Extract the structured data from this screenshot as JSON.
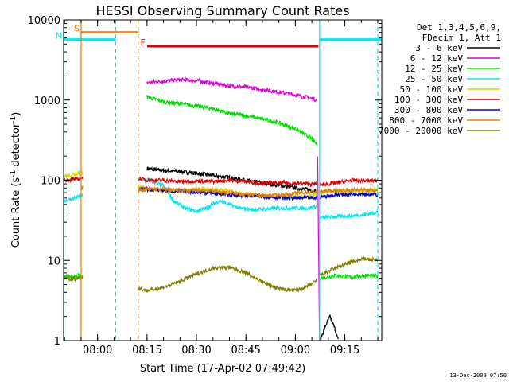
{
  "chart_data": {
    "type": "line",
    "title": "HESSI Observing Summary Count Rates",
    "xlabel": "Start Time (17-Apr-02 07:49:42)",
    "ylabel_main": "Count Rate (s",
    "ylabel_sup1": "-1",
    "ylabel_mid": " detector",
    "ylabel_sup2": "-1",
    "ylabel_end": ")",
    "yscale": "log",
    "ylim": [
      1,
      10000
    ],
    "xlim": [
      "07:49:42",
      "09:26:12"
    ],
    "yticks": [
      1,
      10,
      100,
      1000,
      10000
    ],
    "ytick_labels": [
      "1",
      "10",
      "100",
      "1000",
      "10000"
    ],
    "xticks": [
      "08:00",
      "08:15",
      "08:30",
      "08:45",
      "09:00",
      "09:15"
    ],
    "grid": false,
    "legend": {
      "placement": "right",
      "header1": "Det 1,3,4,5,6,9,",
      "header2": "FDecim 1, Att 1",
      "entries": [
        {
          "label": "3 - 6 keV",
          "color": "#000000"
        },
        {
          "label": "6 - 12 keV",
          "color": "#e000e0"
        },
        {
          "label": "12 - 25 keV",
          "color": "#00e000"
        },
        {
          "label": "25 - 50 keV",
          "color": "#00e8f0"
        },
        {
          "label": "50 - 100 keV",
          "color": "#d8d800"
        },
        {
          "label": "100 - 300 keV",
          "color": "#e00000"
        },
        {
          "label": "300 - 800 keV",
          "color": "#0000e0"
        },
        {
          "label": "800 - 7000 keV",
          "color": "#e08000"
        },
        {
          "label": "7000 - 20000 keV",
          "color": "#808000"
        }
      ]
    },
    "flags": [
      {
        "label": "S",
        "color": "#ff8000",
        "x_start": "07:55:00",
        "x_end": "08:12:30",
        "y": 7000
      },
      {
        "label": "N",
        "color": "#00e8f0",
        "x_start": "07:49:42",
        "x_end": "08:05:30",
        "y": 5700
      },
      {
        "label": "F",
        "color": "#e00000",
        "x_start": "08:15:00",
        "x_end": "09:07:00",
        "y": 4700
      },
      {
        "label": "",
        "color": "#00e8f0",
        "x_start": "09:07:30",
        "x_end": "09:26:12",
        "y": 5700
      }
    ],
    "vertical_lines": [
      {
        "x": "07:49:42",
        "color": "#00e8f0",
        "style": "solid"
      },
      {
        "x": "07:55:00",
        "color": "#e08000",
        "style": "solid"
      },
      {
        "x": "08:05:30",
        "color": "#00e8f0",
        "style": "dashed"
      },
      {
        "x": "08:12:20",
        "color": "#ff8000",
        "style": "dashed"
      },
      {
        "x": "09:07:20",
        "color": "#00e8f0",
        "style": "solid"
      },
      {
        "x": "09:25:00",
        "color": "#00e8f0",
        "style": "dashed"
      }
    ],
    "series": [
      {
        "name": "3 - 6 keV",
        "color": "#000000",
        "segments": [
          [
            [
              "08:15:00",
              140
            ],
            [
              "08:20:00",
              132
            ],
            [
              "08:25:00",
              128
            ],
            [
              "08:30:00",
              122
            ],
            [
              "08:35:00",
              114
            ],
            [
              "08:40:00",
              108
            ],
            [
              "08:45:00",
              100
            ],
            [
              "08:50:00",
              92
            ],
            [
              "08:55:00",
              86
            ],
            [
              "09:00:00",
              80
            ],
            [
              "09:05:00",
              75
            ],
            [
              "09:06:30",
              73
            ]
          ],
          [
            [
              "09:07:30",
              1
            ],
            [
              "09:09:00",
              1.5
            ],
            [
              "09:10:30",
              2
            ],
            [
              "09:12:00",
              1.4
            ],
            [
              "09:13:00",
              1
            ]
          ]
        ]
      },
      {
        "name": "6 - 12 keV",
        "color": "#e000e0",
        "segments": [
          [
            [
              "08:15:00",
              1650
            ],
            [
              "08:20:00",
              1720
            ],
            [
              "08:25:00",
              1800
            ],
            [
              "08:30:00",
              1750
            ],
            [
              "08:35:00",
              1620
            ],
            [
              "08:40:00",
              1500
            ],
            [
              "08:45:00",
              1450
            ],
            [
              "08:50:00",
              1360
            ],
            [
              "08:55:00",
              1260
            ],
            [
              "09:00:00",
              1160
            ],
            [
              "09:05:00",
              1050
            ],
            [
              "09:06:30",
              1000
            ]
          ],
          [
            [
              "09:06:45",
              200
            ],
            [
              "09:07:00",
              20
            ],
            [
              "09:07:20",
              1
            ]
          ]
        ]
      },
      {
        "name": "12 - 25 keV",
        "color": "#00e000",
        "segments": [
          [
            [
              "07:49:42",
              6.5
            ],
            [
              "07:52:00",
              6.2
            ],
            [
              "07:54:00",
              6.5
            ],
            [
              "07:55:30",
              6.3
            ]
          ],
          [
            [
              "08:15:00",
              1100
            ],
            [
              "08:20:00",
              950
            ],
            [
              "08:25:00",
              900
            ],
            [
              "08:30:00",
              840
            ],
            [
              "08:35:00",
              780
            ],
            [
              "08:40:00",
              680
            ],
            [
              "08:45:00",
              640
            ],
            [
              "08:50:00",
              580
            ],
            [
              "08:55:00",
              520
            ],
            [
              "09:00:00",
              440
            ],
            [
              "09:05:00",
              330
            ],
            [
              "09:06:30",
              280
            ]
          ],
          [
            [
              "09:07:30",
              6
            ],
            [
              "09:12:00",
              6.5
            ],
            [
              "09:17:00",
              6.2
            ],
            [
              "09:22:00",
              6.5
            ],
            [
              "09:25:00",
              6.3
            ]
          ]
        ]
      },
      {
        "name": "25 - 50 keV",
        "color": "#00e8f0",
        "segments": [
          [
            [
              "07:49:42",
              56
            ],
            [
              "07:52:00",
              58
            ],
            [
              "07:54:00",
              62
            ],
            [
              "07:55:30",
              64
            ]
          ],
          [
            [
              "08:12:20",
              102
            ],
            [
              "08:16:00",
              100
            ],
            [
              "08:20:00",
              85
            ],
            [
              "08:23:00",
              55
            ],
            [
              "08:27:00",
              44
            ],
            [
              "08:30:00",
              41
            ],
            [
              "08:33:00",
              45
            ],
            [
              "08:37:00",
              56
            ],
            [
              "08:40:00",
              50
            ],
            [
              "08:43:00",
              45
            ],
            [
              "08:47:00",
              43
            ],
            [
              "08:52:00",
              44
            ],
            [
              "08:56:00",
              45
            ],
            [
              "09:00:00",
              45
            ],
            [
              "09:04:00",
              45
            ],
            [
              "09:06:30",
              47
            ]
          ],
          [
            [
              "09:07:30",
              34
            ],
            [
              "09:12:00",
              35
            ],
            [
              "09:17:00",
              36
            ],
            [
              "09:22:00",
              38
            ],
            [
              "09:25:00",
              40
            ]
          ]
        ]
      },
      {
        "name": "50 - 100 keV",
        "color": "#d8d800",
        "segments": [
          [
            [
              "07:49:42",
              110
            ],
            [
              "07:52:00",
              115
            ],
            [
              "07:54:00",
              122
            ],
            [
              "07:55:30",
              126
            ]
          ],
          [
            [
              "08:12:20",
              85
            ],
            [
              "08:17:00",
              74
            ],
            [
              "08:22:00",
              72
            ],
            [
              "08:27:00",
              74
            ],
            [
              "08:32:00",
              78
            ],
            [
              "08:38:00",
              76
            ],
            [
              "08:44:00",
              68
            ],
            [
              "08:50:00",
              64
            ],
            [
              "08:55:00",
              62
            ],
            [
              "09:00:00",
              62
            ],
            [
              "09:04:00",
              62
            ],
            [
              "09:06:30",
              66
            ]
          ],
          [
            [
              "09:07:30",
              70
            ],
            [
              "09:13:00",
              74
            ],
            [
              "09:19:00",
              74
            ],
            [
              "09:25:00",
              76
            ]
          ]
        ]
      },
      {
        "name": "100 - 300 keV",
        "color": "#e00000",
        "segments": [
          [
            [
              "07:49:42",
              100
            ],
            [
              "07:52:00",
              102
            ],
            [
              "07:54:00",
              104
            ],
            [
              "07:55:30",
              104
            ]
          ],
          [
            [
              "08:12:20",
              105
            ],
            [
              "08:15:00",
              100
            ],
            [
              "08:20:00",
              100
            ],
            [
              "08:25:00",
              96
            ],
            [
              "08:30:00",
              98
            ],
            [
              "08:35:00",
              96
            ],
            [
              "08:40:00",
              100
            ],
            [
              "08:45:00",
              96
            ],
            [
              "08:50:00",
              92
            ],
            [
              "08:55:00",
              92
            ],
            [
              "09:00:00",
              92
            ],
            [
              "09:05:00",
              90
            ],
            [
              "09:06:30",
              90
            ]
          ],
          [
            [
              "09:07:30",
              88
            ],
            [
              "09:12:00",
              92
            ],
            [
              "09:17:00",
              100
            ],
            [
              "09:22:00",
              98
            ],
            [
              "09:25:00",
              100
            ]
          ]
        ]
      },
      {
        "name": "300 - 800 keV",
        "color": "#0000e0",
        "segments": [
          [
            [
              "08:12:20",
              78
            ],
            [
              "08:17:00",
              76
            ],
            [
              "08:22:00",
              74
            ],
            [
              "08:27:00",
              72
            ],
            [
              "08:33:00",
              70
            ],
            [
              "08:40:00",
              66
            ],
            [
              "08:46:00",
              64
            ],
            [
              "08:52:00",
              62
            ],
            [
              "08:57:00",
              60
            ],
            [
              "09:02:00",
              60
            ],
            [
              "09:06:30",
              60
            ]
          ],
          [
            [
              "09:07:30",
              62
            ],
            [
              "09:13:00",
              66
            ],
            [
              "09:19:00",
              68
            ],
            [
              "09:25:00",
              66
            ]
          ]
        ]
      },
      {
        "name": "800 - 7000 keV",
        "color": "#e08000",
        "segments": [
          [
            [
              "07:55:00",
              80
            ],
            [
              "07:55:30",
              82
            ]
          ],
          [
            [
              "08:12:20",
              75
            ],
            [
              "08:17:00",
              78
            ],
            [
              "08:22:00",
              76
            ],
            [
              "08:27:00",
              74
            ],
            [
              "08:33:00",
              75
            ],
            [
              "08:40:00",
              70
            ],
            [
              "08:46:00",
              66
            ],
            [
              "08:52:00",
              64
            ],
            [
              "08:57:00",
              66
            ],
            [
              "09:02:00",
              70
            ],
            [
              "09:06:30",
              72
            ]
          ],
          [
            [
              "09:07:30",
              72
            ],
            [
              "09:13:00",
              74
            ],
            [
              "09:19:00",
              76
            ],
            [
              "09:25:00",
              74
            ]
          ]
        ]
      },
      {
        "name": "7000 - 20000 keV",
        "color": "#808000",
        "segments": [
          [
            [
              "07:49:42",
              6
            ],
            [
              "07:52:00",
              5.8
            ],
            [
              "07:54:00",
              6
            ],
            [
              "07:55:30",
              6.2
            ]
          ],
          [
            [
              "08:12:20",
              4.5
            ],
            [
              "08:15:00",
              4.2
            ],
            [
              "08:20:00",
              4.6
            ],
            [
              "08:25:00",
              5.5
            ],
            [
              "08:30:00",
              6.8
            ],
            [
              "08:35:00",
              8
            ],
            [
              "08:40:00",
              8.2
            ],
            [
              "08:45:00",
              7
            ],
            [
              "08:50:00",
              5.4
            ],
            [
              "08:55:00",
              4.4
            ],
            [
              "09:00:00",
              4.2
            ],
            [
              "09:04:00",
              4.8
            ],
            [
              "09:06:30",
              5.6
            ]
          ],
          [
            [
              "09:07:30",
              6.5
            ],
            [
              "09:12:00",
              8
            ],
            [
              "09:17:00",
              9.5
            ],
            [
              "09:21:00",
              10.5
            ],
            [
              "09:25:00",
              10
            ]
          ]
        ]
      }
    ]
  },
  "footer": {
    "stamp": "13-Dec-2009 07:50"
  }
}
